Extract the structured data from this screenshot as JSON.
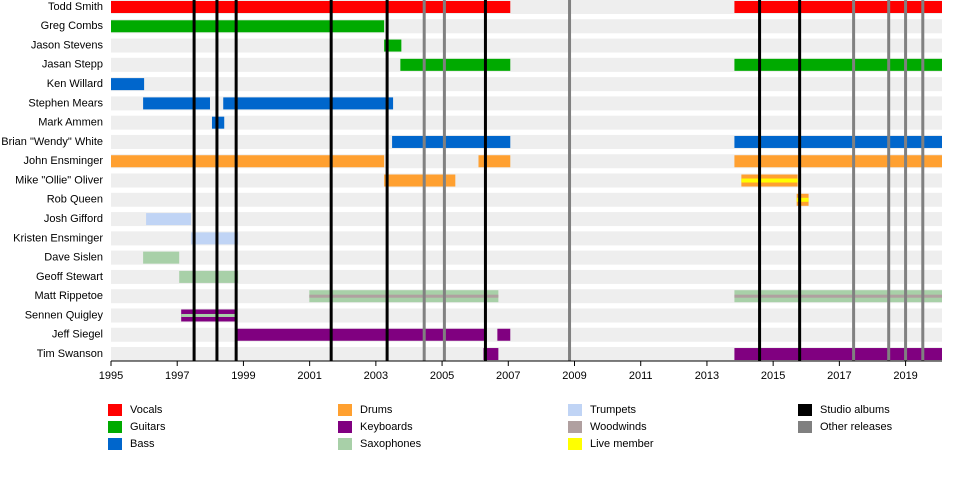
{
  "chart_data": {
    "type": "timeline",
    "xlim": [
      1995,
      2020.1
    ],
    "xticks": [
      1995,
      1997,
      1999,
      2001,
      2003,
      2005,
      2007,
      2009,
      2011,
      2013,
      2015,
      2017,
      2019
    ],
    "roles": [
      {
        "name": "Vocals",
        "color": "#ff0000"
      },
      {
        "name": "Guitars",
        "color": "#00aa00"
      },
      {
        "name": "Bass",
        "color": "#0066cc"
      },
      {
        "name": "Drums",
        "color": "#ffa030"
      },
      {
        "name": "Keyboards",
        "color": "#800080"
      },
      {
        "name": "Saxophones",
        "color": "#a8d0a8"
      },
      {
        "name": "Trumpets",
        "color": "#c0d4f5"
      },
      {
        "name": "Woodwinds",
        "color": "#b0a0a0"
      },
      {
        "name": "Live member",
        "color": "#ffff00"
      }
    ],
    "releases": [
      {
        "name": "Studio albums",
        "color": "#000000",
        "years": [
          1997.51,
          1998.2,
          1998.78,
          2001.65,
          2003.34,
          2006.31,
          2014.59,
          2015.8
        ]
      },
      {
        "name": "Other releases",
        "color": "#808080",
        "years": [
          2004.46,
          2005.07,
          2008.85,
          2017.43,
          2018.49,
          2019.0,
          2019.52
        ]
      }
    ],
    "members": [
      {
        "name": "Todd Smith",
        "segments": [
          {
            "start": 1995,
            "end": 2007.06,
            "role": "Vocals"
          },
          {
            "start": 2013.83,
            "end": 2020.1,
            "role": "Vocals"
          }
        ]
      },
      {
        "name": "Greg Combs",
        "segments": [
          {
            "start": 1995,
            "end": 2003.25,
            "role": "Guitars"
          }
        ]
      },
      {
        "name": "Jason Stevens",
        "segments": [
          {
            "start": 2003.25,
            "end": 2003.77,
            "role": "Guitars"
          }
        ]
      },
      {
        "name": "Jasan Stepp",
        "segments": [
          {
            "start": 2003.74,
            "end": 2007.06,
            "role": "Guitars"
          },
          {
            "start": 2013.83,
            "end": 2020.1,
            "role": "Guitars"
          }
        ]
      },
      {
        "name": "Ken Willard",
        "segments": [
          {
            "start": 1995,
            "end": 1996,
            "role": "Bass"
          }
        ]
      },
      {
        "name": "Stephen Mears",
        "segments": [
          {
            "start": 1995.97,
            "end": 1997.99,
            "role": "Bass"
          },
          {
            "start": 1998.39,
            "end": 2003.52,
            "role": "Bass"
          }
        ]
      },
      {
        "name": "Mark Ammen",
        "segments": [
          {
            "start": 1998.05,
            "end": 1998.42,
            "role": "Bass"
          }
        ]
      },
      {
        "name": "Brian \"Wendy\" White",
        "segments": [
          {
            "start": 2003.49,
            "end": 2007.06,
            "role": "Bass"
          },
          {
            "start": 2013.83,
            "end": 2020.1,
            "role": "Bass"
          }
        ]
      },
      {
        "name": "John Ensminger",
        "segments": [
          {
            "start": 1995,
            "end": 2003.25,
            "role": "Drums"
          },
          {
            "start": 2006.1,
            "end": 2007.06,
            "role": "Drums"
          },
          {
            "start": 2013.83,
            "end": 2020.1,
            "role": "Drums"
          }
        ]
      },
      {
        "name": "Mike \"Ollie\" Oliver",
        "segments": [
          {
            "start": 2003.25,
            "end": 2005.4,
            "role": "Drums"
          },
          {
            "start": 2014.04,
            "end": 2015.74,
            "role": "Drums",
            "live": true
          }
        ]
      },
      {
        "name": "Rob Queen",
        "segments": [
          {
            "start": 2015.71,
            "end": 2016.07,
            "role": "Drums",
            "live": true
          }
        ]
      },
      {
        "name": "Josh Gifford",
        "segments": [
          {
            "start": 1996.06,
            "end": 1997.42,
            "role": "Trumpets"
          }
        ]
      },
      {
        "name": "Kristen Ensminger",
        "segments": [
          {
            "start": 1997.42,
            "end": 1998.84,
            "role": "Trumpets"
          }
        ]
      },
      {
        "name": "Dave Sislen",
        "segments": [
          {
            "start": 1995.97,
            "end": 1997.06,
            "role": "Saxophones"
          }
        ]
      },
      {
        "name": "Geoff Stewart",
        "segments": [
          {
            "start": 1997.06,
            "end": 1998.84,
            "role": "Saxophones"
          }
        ]
      },
      {
        "name": "Matt Rippetoe",
        "segments": [
          {
            "start": 2000.99,
            "end": 2006.7,
            "role": "Saxophones",
            "secondary": "Woodwinds"
          },
          {
            "start": 2013.83,
            "end": 2020.1,
            "role": "Saxophones",
            "secondary": "Woodwinds"
          }
        ]
      },
      {
        "name": "Sennen Quigley",
        "segments": [
          {
            "start": 1997.12,
            "end": 1998.75,
            "role": "Keyboards",
            "secondary": "Saxophones"
          }
        ]
      },
      {
        "name": "Jeff Siegel",
        "segments": [
          {
            "start": 1998.78,
            "end": 2006.31,
            "role": "Keyboards"
          },
          {
            "start": 2006.67,
            "end": 2007.06,
            "role": "Keyboards"
          }
        ]
      },
      {
        "name": "Tim Swanson",
        "segments": [
          {
            "start": 2006.25,
            "end": 2006.7,
            "role": "Keyboards"
          },
          {
            "start": 2013.83,
            "end": 2020.1,
            "role": "Keyboards"
          }
        ]
      }
    ]
  }
}
